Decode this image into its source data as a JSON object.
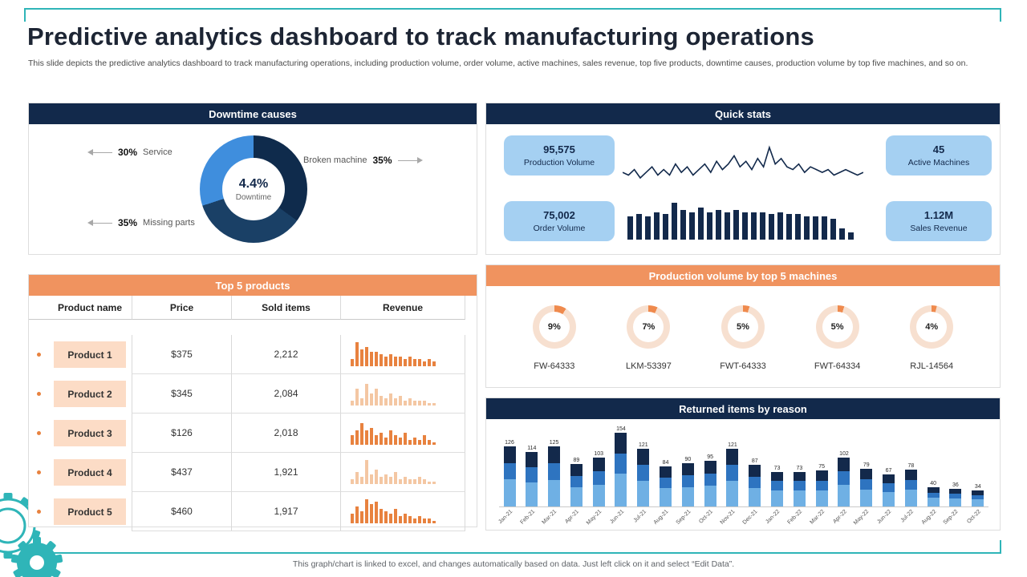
{
  "slide": {
    "title": "Predictive analytics dashboard to track manufacturing operations",
    "subtitle": "This slide depicts the predictive analytics dashboard to track manufacturing operations, including production volume, order volume, active machines, sales revenue, top five products, downtime causes, production volume by top five machines, and so on.",
    "footer": "This graph/chart is linked to excel, and changes automatically based on data. Just left click on it and select “Edit Data”."
  },
  "downtime": {
    "header": "Downtime causes",
    "center_value": "4.4%",
    "center_label": "Downtime",
    "callouts": [
      {
        "pct": "30%",
        "label": "Service"
      },
      {
        "label": "Broken machine",
        "pct": "35%"
      },
      {
        "pct": "35%",
        "label": "Missing parts"
      }
    ]
  },
  "quick_stats": {
    "header": "Quick stats",
    "stats": [
      {
        "value": "95,575",
        "label": "Production Volume"
      },
      {
        "value": "45",
        "label": "Active Machines"
      },
      {
        "value": "75,002",
        "label": "Order Volume"
      },
      {
        "value": "1.12M",
        "label": "Sales Revenue"
      }
    ]
  },
  "top_products": {
    "header": "Top 5 products",
    "columns": [
      "Product name",
      "Price",
      "Sold items",
      "Revenue"
    ],
    "rows": [
      {
        "name": "Product 1",
        "price": "$375",
        "sold": "2,212"
      },
      {
        "name": "Product 2",
        "price": "$345",
        "sold": "2,084"
      },
      {
        "name": "Product 3",
        "price": "$126",
        "sold": "2,018"
      },
      {
        "name": "Product 4",
        "price": "$437",
        "sold": "1,921"
      },
      {
        "name": "Product 5",
        "price": "$460",
        "sold": "1,917"
      }
    ]
  },
  "machines": {
    "header": "Production volume by top 5 machines",
    "items": [
      {
        "pct": "9%",
        "label": "FW-64333"
      },
      {
        "pct": "7%",
        "label": "LKM-53397"
      },
      {
        "pct": "5%",
        "label": "FWT-64333"
      },
      {
        "pct": "5%",
        "label": "FWT-64334"
      },
      {
        "pct": "4%",
        "label": "RJL-14564"
      }
    ]
  },
  "returned": {
    "header": "Returned items by reason"
  },
  "colors": {
    "accent_teal": "#2fb5b8",
    "navy": "#12294b",
    "orange": "#f0935f",
    "pill_blue": "#a5d0f2",
    "spark_orange": "#e8823f",
    "spark_orange_light": "#f4c7a3",
    "machine_wedge": "#ef8a4d",
    "machine_ring": "#f7e0d0"
  },
  "chart_data": [
    {
      "id": "downtime-donut",
      "type": "pie",
      "style": "donut",
      "title": "Downtime causes",
      "labels": [
        "Broken machine",
        "Missing parts",
        "Service"
      ],
      "values": [
        35,
        35,
        30
      ],
      "colors": [
        "#0f2b4c",
        "#1a4066",
        "#3f8edd"
      ],
      "center_label": "4.4% Downtime"
    },
    {
      "id": "production-volume-sparkline",
      "type": "line",
      "title": "Production volume trend",
      "values": [
        6,
        5,
        7,
        4,
        6,
        8,
        5,
        7,
        5,
        9,
        6,
        8,
        5,
        7,
        9,
        6,
        10,
        7,
        9,
        12,
        8,
        10,
        7,
        11,
        8,
        15,
        9,
        11,
        8,
        7,
        9,
        6,
        8,
        7,
        6,
        7,
        5,
        6,
        7,
        6,
        5,
        6
      ]
    },
    {
      "id": "order-volume-sparkline",
      "type": "bar",
      "title": "Order volume trend",
      "values": [
        10,
        11,
        10,
        12,
        11,
        16,
        13,
        12,
        14,
        12,
        13,
        12,
        13,
        12,
        12,
        12,
        11,
        12,
        11,
        11,
        10,
        10,
        10,
        9,
        5,
        3
      ]
    },
    {
      "id": "product-revenue-sparklines",
      "type": "bar",
      "title": "Revenue mini charts for top 5 products",
      "series": [
        {
          "name": "Product 1",
          "light": false,
          "values": [
            3,
            10,
            7,
            8,
            6,
            6,
            5,
            4,
            5,
            4,
            4,
            3,
            4,
            3,
            3,
            2,
            3,
            2
          ]
        },
        {
          "name": "Product 2",
          "light": true,
          "values": [
            2,
            7,
            3,
            9,
            5,
            7,
            4,
            3,
            5,
            3,
            4,
            2,
            3,
            2,
            2,
            2,
            1,
            1
          ]
        },
        {
          "name": "Product 3",
          "light": false,
          "values": [
            4,
            6,
            9,
            6,
            7,
            4,
            5,
            3,
            6,
            4,
            3,
            5,
            2,
            3,
            2,
            4,
            2,
            1
          ]
        },
        {
          "name": "Product 4",
          "light": true,
          "values": [
            2,
            5,
            3,
            10,
            4,
            6,
            3,
            4,
            3,
            5,
            2,
            3,
            2,
            2,
            3,
            2,
            1,
            1
          ]
        },
        {
          "name": "Product 5",
          "light": false,
          "values": [
            4,
            7,
            5,
            10,
            8,
            9,
            6,
            5,
            4,
            6,
            3,
            4,
            3,
            2,
            3,
            2,
            2,
            1
          ]
        }
      ]
    },
    {
      "id": "machines-donuts",
      "type": "pie",
      "style": "donut-set",
      "title": "Production volume by top 5 machines",
      "labels": [
        "FW-64333",
        "LKM-53397",
        "FWT-64333",
        "FWT-64334",
        "RJL-14564"
      ],
      "values": [
        9,
        7,
        5,
        5,
        4
      ]
    },
    {
      "id": "returned-items",
      "type": "bar",
      "stacked": true,
      "title": "Returned items by reason",
      "ylim": [
        0,
        160
      ],
      "value_labels": true,
      "categories": [
        "Jan-21",
        "Feb-21",
        "Mar-21",
        "Apr-21",
        "May-21",
        "Jun-21",
        "Jul-21",
        "Aug-21",
        "Sep-21",
        "Oct-21",
        "Nov-21",
        "Dec-21",
        "Jan-22",
        "Feb-22",
        "Mar-22",
        "Apr-22",
        "May-22",
        "Jun-22",
        "Jul-22",
        "Aug-22",
        "Sep-22",
        "Oct-22"
      ],
      "totals": [
        126,
        114,
        125,
        89,
        103,
        154,
        121,
        84,
        90,
        95,
        121,
        87,
        73,
        73,
        75,
        102,
        79,
        67,
        78,
        40,
        36,
        34
      ],
      "series": [
        {
          "color": "#6fb0e4",
          "values": [
            57,
            51,
            56,
            40,
            46,
            69,
            54,
            38,
            41,
            43,
            54,
            39,
            33,
            33,
            34,
            46,
            36,
            30,
            35,
            18,
            16,
            15
          ]
        },
        {
          "color": "#2e74c0",
          "values": [
            34,
            31,
            34,
            24,
            28,
            42,
            33,
            23,
            24,
            26,
            33,
            23,
            20,
            20,
            20,
            28,
            21,
            18,
            21,
            11,
            10,
            9
          ]
        },
        {
          "color": "#13294b",
          "values": [
            35,
            32,
            35,
            25,
            29,
            43,
            34,
            23,
            25,
            26,
            34,
            25,
            20,
            20,
            21,
            28,
            22,
            19,
            22,
            11,
            10,
            10
          ]
        }
      ]
    }
  ]
}
